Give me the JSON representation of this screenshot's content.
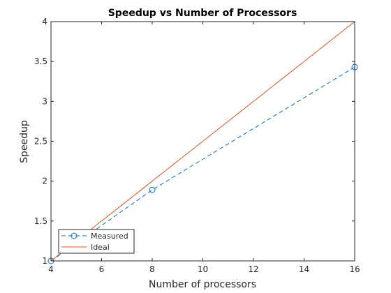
{
  "chart_data": {
    "type": "line",
    "title": "Speedup vs Number of Processors",
    "xlabel": "Number of processors",
    "ylabel": "Speedup",
    "xlim": [
      4,
      16
    ],
    "ylim": [
      1,
      4
    ],
    "xticks": [
      4,
      6,
      8,
      10,
      12,
      14,
      16
    ],
    "yticks": [
      1,
      1.5,
      2,
      2.5,
      3,
      3.5,
      4
    ],
    "xtick_labels": [
      "4",
      "6",
      "8",
      "10",
      "12",
      "14",
      "16"
    ],
    "ytick_labels": [
      "1",
      "1.5",
      "2",
      "2.5",
      "3",
      "3.5",
      "4"
    ],
    "grid": false,
    "legend_position": "bottom-left",
    "series": [
      {
        "name": "Measured",
        "x": [
          4,
          8,
          16
        ],
        "y": [
          1.0,
          1.89,
          3.43
        ],
        "color": "#0072BD",
        "line_style": "dashed",
        "marker": "circle"
      },
      {
        "name": "Ideal",
        "x": [
          4,
          8,
          16
        ],
        "y": [
          1.0,
          2.0,
          4.0
        ],
        "color": "#D95319",
        "line_style": "solid",
        "marker": "none"
      }
    ]
  }
}
